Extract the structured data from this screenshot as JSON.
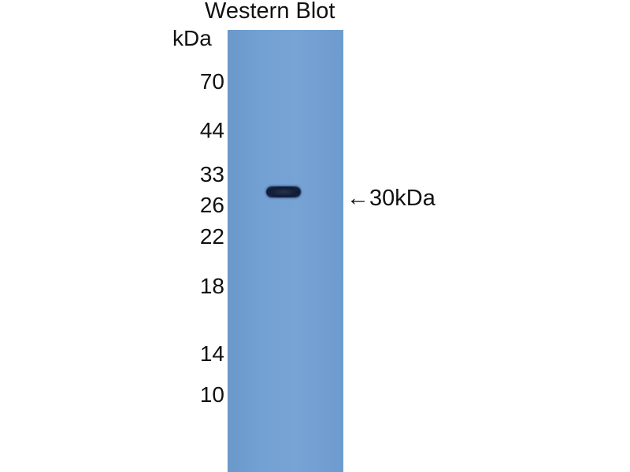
{
  "title": "Western Blot",
  "unit_label": "kDa",
  "markers": [
    "70",
    "44",
    "33",
    "26",
    "22",
    "18",
    "14",
    "10"
  ],
  "band_annotation": "←30kDa",
  "colors": {
    "membrane": "#74a1d3",
    "band": "#0f1a33"
  }
}
